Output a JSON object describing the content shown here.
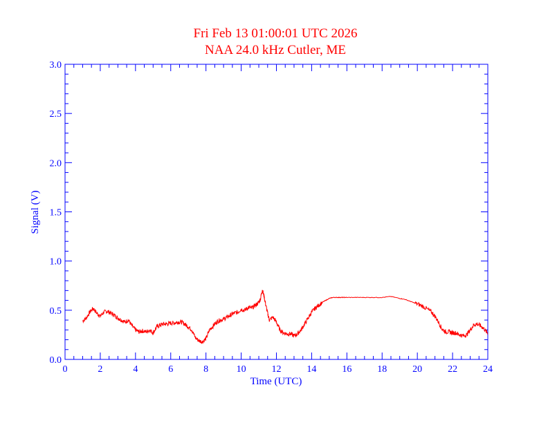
{
  "chart_data": {
    "type": "line",
    "title": "Fri Feb 13 01:00:01 UTC 2026",
    "subtitle": "NAA 24.0 kHz Cutler, ME",
    "xlabel": "Time (UTC)",
    "ylabel": "Signal (V)",
    "xlim": [
      0,
      24
    ],
    "ylim": [
      0,
      3
    ],
    "xticks": [
      "0",
      "2",
      "4",
      "6",
      "8",
      "10",
      "12",
      "14",
      "16",
      "18",
      "20",
      "22",
      "24"
    ],
    "yticks": [
      "0.0",
      "0.5",
      "1.0",
      "1.5",
      "2.0",
      "2.5",
      "3.0"
    ],
    "grid": false,
    "colors": {
      "axes": "#0000ff",
      "series": "#ff0000",
      "title": "#ff0000"
    },
    "series": [
      {
        "x": [
          1.0,
          1.2,
          1.4,
          1.6,
          1.8,
          2.0,
          2.2,
          2.4,
          2.6,
          2.8,
          3.0,
          3.2,
          3.4,
          3.6,
          3.8,
          4.0,
          4.2,
          4.4,
          4.6,
          4.8,
          5.0,
          5.2,
          5.4,
          5.6,
          5.8,
          6.0,
          6.2,
          6.4,
          6.6,
          6.8,
          7.0,
          7.2,
          7.4,
          7.6,
          7.8,
          8.0,
          8.2,
          8.4,
          8.6,
          8.8,
          9.0,
          9.2,
          9.4,
          9.6,
          9.8,
          10.0,
          10.2,
          10.4,
          10.6,
          10.8,
          11.0,
          11.1,
          11.2,
          11.3,
          11.4,
          11.5,
          11.6,
          11.8,
          12.0,
          12.2,
          12.4,
          12.6,
          12.8,
          13.0,
          13.2,
          13.4,
          13.6,
          13.8,
          14.0,
          14.2,
          14.4,
          14.6,
          14.8,
          15.0,
          15.2,
          15.4,
          15.6,
          15.8,
          16.0,
          16.5,
          17.0,
          17.5,
          18.0,
          18.5,
          19.0,
          19.3,
          19.6,
          19.9,
          20.2,
          20.5,
          20.8,
          21.0,
          21.2,
          21.4,
          21.6,
          21.8,
          22.0,
          22.2,
          22.4,
          22.6,
          22.8,
          23.0,
          23.2,
          23.4,
          23.6,
          23.8,
          24.0
        ],
        "y": [
          0.39,
          0.42,
          0.48,
          0.52,
          0.47,
          0.44,
          0.48,
          0.49,
          0.47,
          0.45,
          0.42,
          0.4,
          0.38,
          0.4,
          0.34,
          0.3,
          0.28,
          0.29,
          0.28,
          0.3,
          0.27,
          0.33,
          0.35,
          0.36,
          0.36,
          0.37,
          0.37,
          0.38,
          0.38,
          0.36,
          0.33,
          0.3,
          0.22,
          0.19,
          0.18,
          0.21,
          0.3,
          0.34,
          0.38,
          0.4,
          0.41,
          0.43,
          0.45,
          0.47,
          0.48,
          0.51,
          0.5,
          0.53,
          0.52,
          0.55,
          0.58,
          0.62,
          0.71,
          0.64,
          0.55,
          0.47,
          0.4,
          0.43,
          0.38,
          0.3,
          0.27,
          0.26,
          0.26,
          0.24,
          0.26,
          0.3,
          0.36,
          0.42,
          0.48,
          0.52,
          0.55,
          0.58,
          0.6,
          0.62,
          0.63,
          0.63,
          0.63,
          0.63,
          0.63,
          0.63,
          0.63,
          0.63,
          0.63,
          0.64,
          0.62,
          0.61,
          0.59,
          0.57,
          0.55,
          0.52,
          0.48,
          0.44,
          0.38,
          0.31,
          0.28,
          0.28,
          0.27,
          0.27,
          0.25,
          0.24,
          0.25,
          0.3,
          0.35,
          0.36,
          0.34,
          0.31,
          0.26
        ]
      }
    ]
  }
}
